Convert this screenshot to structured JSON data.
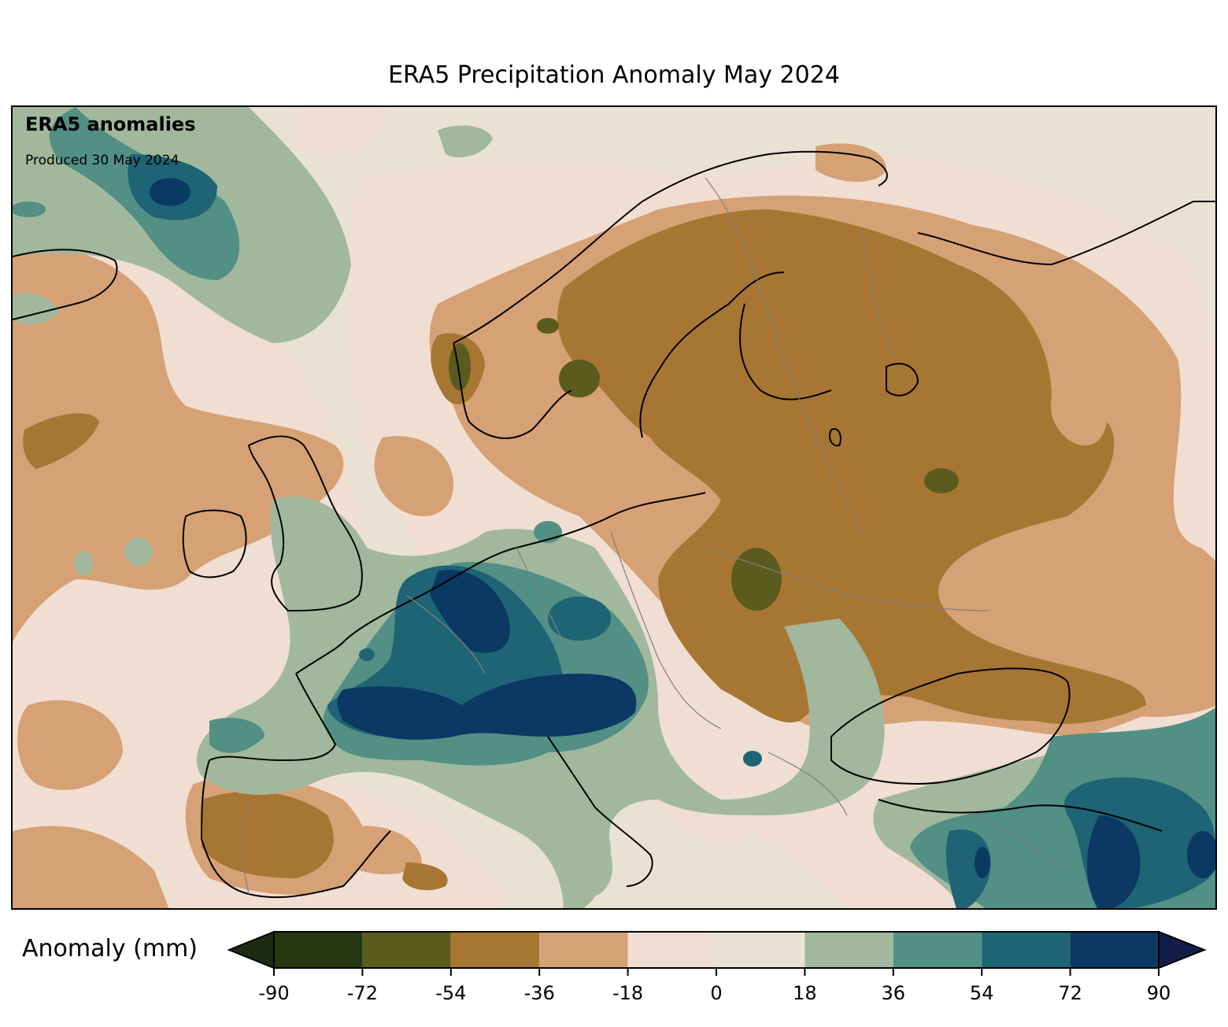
{
  "title": "ERA5 Precipitation Anomaly May 2024",
  "annotation": {
    "title": "ERA5 anomalies",
    "produced": "Produced 30 May 2024"
  },
  "colorbar": {
    "label": "Anomaly (mm)",
    "ticks": [
      "-90",
      "-72",
      "-54",
      "-36",
      "-18",
      "0",
      "18",
      "36",
      "54",
      "72",
      "90"
    ],
    "bins": [
      {
        "from": -90,
        "to": -72,
        "color": "#263710"
      },
      {
        "from": -72,
        "to": -54,
        "color": "#5c5b1e"
      },
      {
        "from": -54,
        "to": -36,
        "color": "#a87633"
      },
      {
        "from": -36,
        "to": -18,
        "color": "#d6a175"
      },
      {
        "from": -18,
        "to": 0,
        "color": "#f0ded2"
      },
      {
        "from": 0,
        "to": 18,
        "color": "#e9e2d2"
      },
      {
        "from": 18,
        "to": 36,
        "color": "#a1b89c"
      },
      {
        "from": 36,
        "to": 54,
        "color": "#528f85"
      },
      {
        "from": 54,
        "to": 72,
        "color": "#1e6474"
      },
      {
        "from": 72,
        "to": 90,
        "color": "#0b3963"
      }
    ],
    "extend_min_color": "#1e2b12",
    "extend_max_color": "#121d4a"
  },
  "map": {
    "region": "Europe",
    "regions": [
      {
        "name": "dry-scandinavia-eastern-europe",
        "category": "-54 to -36"
      },
      {
        "name": "wet-france-alps",
        "category": "72 to 90"
      },
      {
        "name": "wet-turkey-east",
        "category": "54 to 72"
      },
      {
        "name": "dry-iberia",
        "category": "-54 to -36"
      },
      {
        "name": "wet-north-atlantic",
        "category": "72 to 90"
      }
    ]
  }
}
